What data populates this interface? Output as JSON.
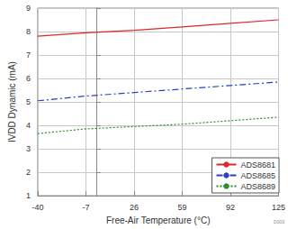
{
  "chart_data": {
    "type": "line",
    "x_label": "Free-Air Temperature (°C)",
    "y_label": "IVDD Dynamic (mA)",
    "xlim": [
      -40,
      125
    ],
    "xticks": [
      -40,
      -7,
      26,
      59,
      92,
      125
    ],
    "ylim": [
      1,
      9
    ],
    "yticks": [
      1,
      2,
      3,
      4,
      5,
      6,
      7,
      8,
      9
    ],
    "grid": true,
    "legend": "lower right",
    "annotations": [
      "D003"
    ],
    "series": [
      {
        "name": "ADS8681",
        "color": "#e0262a",
        "line_style": "solid",
        "x": [
          -40,
          -7,
          26,
          59,
          92,
          125
        ],
        "values": [
          7.8,
          7.95,
          8.05,
          8.2,
          8.35,
          8.5
        ]
      },
      {
        "name": "ADS8685",
        "color": "#2b3fc4",
        "line_style": "dashdot",
        "x": [
          -40,
          -7,
          26,
          59,
          92,
          125
        ],
        "values": [
          5.05,
          5.25,
          5.4,
          5.55,
          5.7,
          5.85
        ]
      },
      {
        "name": "ADS8689",
        "color": "#2e8b2e",
        "line_style": "dotted",
        "x": [
          -40,
          -7,
          26,
          59,
          92,
          125
        ],
        "values": [
          3.65,
          3.85,
          3.95,
          4.05,
          4.2,
          4.35
        ]
      }
    ]
  }
}
